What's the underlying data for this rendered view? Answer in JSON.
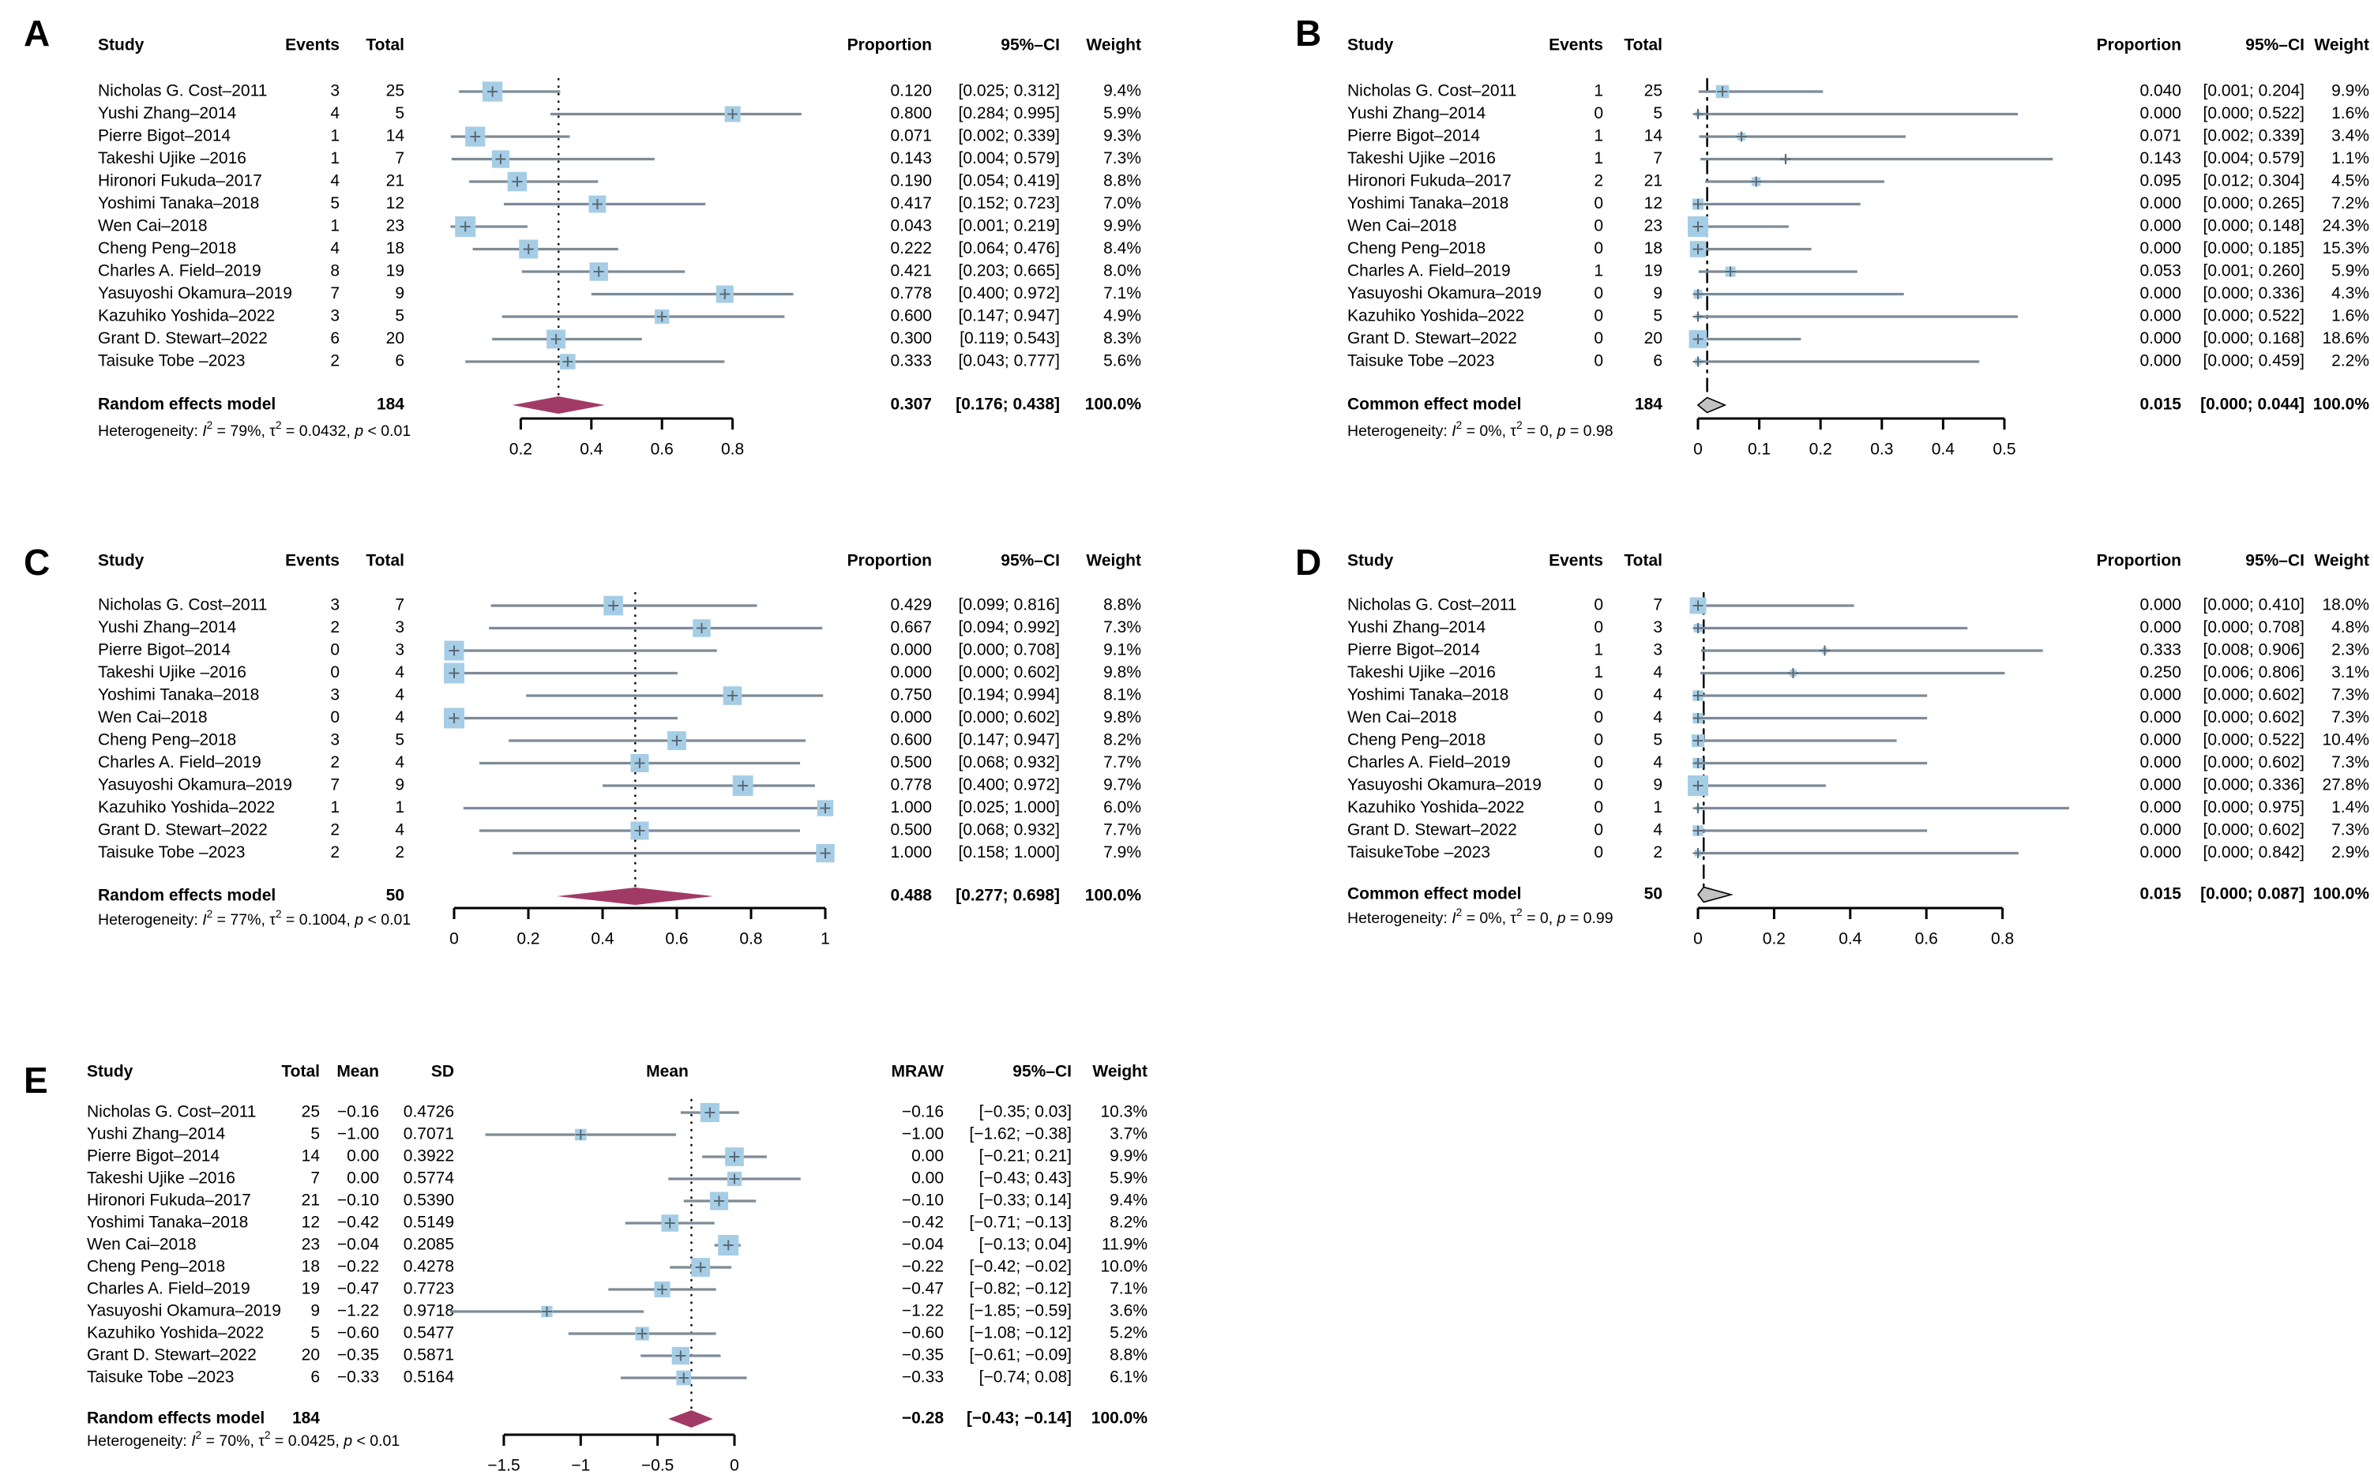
{
  "figure": {
    "background": "#ffffff",
    "colors": {
      "square": "#a5cde5",
      "ci_line": "#7d8b98",
      "marker": "#5a6874",
      "random_diamond": "#a23a66",
      "common_diamond_fill": "#c2c2c2",
      "common_diamond_stroke": "#000000",
      "axis": "#000000"
    },
    "panel_letters": [
      "A",
      "B",
      "C",
      "D",
      "E"
    ]
  },
  "chart_data": [
    {
      "id": "A",
      "letter": "A",
      "type": "forest",
      "model_type": "random",
      "decimals": 3,
      "headers": {
        "study": "Study",
        "events": "Events",
        "total": "Total",
        "effect": "Proportion",
        "ci": "95%–CI",
        "weight": "Weight"
      },
      "axis": {
        "ticks": [
          0.2,
          0.4,
          0.6,
          0.8
        ],
        "tick_labels": [
          "0.2",
          "0.4",
          "0.6",
          "0.8"
        ],
        "line": [
          0.2,
          0.8
        ],
        "ref": 0.307,
        "ref_style": "dotted"
      },
      "studies": [
        {
          "study": "Nicholas G. Cost–2011",
          "events": 3,
          "total": 25,
          "est": 0.12,
          "lo": 0.025,
          "hi": 0.312,
          "weight": 9.4
        },
        {
          "study": "Yushi Zhang–2014",
          "events": 4,
          "total": 5,
          "est": 0.8,
          "lo": 0.284,
          "hi": 0.995,
          "weight": 5.9
        },
        {
          "study": "Pierre Bigot–2014",
          "events": 1,
          "total": 14,
          "est": 0.071,
          "lo": 0.002,
          "hi": 0.339,
          "weight": 9.3
        },
        {
          "study": "Takeshi Ujike –2016",
          "events": 1,
          "total": 7,
          "est": 0.143,
          "lo": 0.004,
          "hi": 0.579,
          "weight": 7.3
        },
        {
          "study": "Hironori Fukuda–2017",
          "events": 4,
          "total": 21,
          "est": 0.19,
          "lo": 0.054,
          "hi": 0.419,
          "weight": 8.8
        },
        {
          "study": "Yoshimi Tanaka–2018",
          "events": 5,
          "total": 12,
          "est": 0.417,
          "lo": 0.152,
          "hi": 0.723,
          "weight": 7.0
        },
        {
          "study": "Wen Cai–2018",
          "events": 1,
          "total": 23,
          "est": 0.043,
          "lo": 0.001,
          "hi": 0.219,
          "weight": 9.9
        },
        {
          "study": "Cheng Peng–2018",
          "events": 4,
          "total": 18,
          "est": 0.222,
          "lo": 0.064,
          "hi": 0.476,
          "weight": 8.4
        },
        {
          "study": "Charles A. Field–2019",
          "events": 8,
          "total": 19,
          "est": 0.421,
          "lo": 0.203,
          "hi": 0.665,
          "weight": 8.0
        },
        {
          "study": "Yasuyoshi Okamura–2019",
          "events": 7,
          "total": 9,
          "est": 0.778,
          "lo": 0.4,
          "hi": 0.972,
          "weight": 7.1
        },
        {
          "study": "Kazuhiko Yoshida–2022",
          "events": 3,
          "total": 5,
          "est": 0.6,
          "lo": 0.147,
          "hi": 0.947,
          "weight": 4.9
        },
        {
          "study": "Grant D. Stewart–2022",
          "events": 6,
          "total": 20,
          "est": 0.3,
          "lo": 0.119,
          "hi": 0.543,
          "weight": 8.3
        },
        {
          "study": "Taisuke Tobe –2023",
          "events": 2,
          "total": 6,
          "est": 0.333,
          "lo": 0.043,
          "hi": 0.777,
          "weight": 5.6
        }
      ],
      "pooled": {
        "label": "Random effects model",
        "total": 184,
        "est": 0.307,
        "lo": 0.176,
        "hi": 0.438,
        "weight_label": "100.0%"
      },
      "heterogeneity": {
        "i2": "79%",
        "tau2": "0.0432",
        "p": "< 0.01"
      }
    },
    {
      "id": "B",
      "letter": "B",
      "type": "forest",
      "model_type": "common",
      "decimals": 3,
      "headers": {
        "study": "Study",
        "events": "Events",
        "total": "Total",
        "effect": "Proportion",
        "ci": "95%–CI",
        "weight": "Weight"
      },
      "axis": {
        "ticks": [
          0,
          0.1,
          0.2,
          0.3,
          0.4,
          0.5
        ],
        "tick_labels": [
          "0",
          "0.1",
          "0.2",
          "0.3",
          "0.4",
          "0.5"
        ],
        "line": [
          0,
          0.5
        ],
        "ref": 0.015,
        "ref_style": "dashdot"
      },
      "studies": [
        {
          "study": "Nicholas G. Cost–2011",
          "events": 1,
          "total": 25,
          "est": 0.04,
          "lo": 0.001,
          "hi": 0.204,
          "weight": 9.9
        },
        {
          "study": "Yushi Zhang–2014",
          "events": 0,
          "total": 5,
          "est": 0.0,
          "lo": 0.0,
          "hi": 0.522,
          "weight": 1.6
        },
        {
          "study": "Pierre Bigot–2014",
          "events": 1,
          "total": 14,
          "est": 0.071,
          "lo": 0.002,
          "hi": 0.339,
          "weight": 3.4
        },
        {
          "study": "Takeshi Ujike –2016",
          "events": 1,
          "total": 7,
          "est": 0.143,
          "lo": 0.004,
          "hi": 0.579,
          "weight": 1.1
        },
        {
          "study": "Hironori Fukuda–2017",
          "events": 2,
          "total": 21,
          "est": 0.095,
          "lo": 0.012,
          "hi": 0.304,
          "weight": 4.5
        },
        {
          "study": "Yoshimi Tanaka–2018",
          "events": 0,
          "total": 12,
          "est": 0.0,
          "lo": 0.0,
          "hi": 0.265,
          "weight": 7.2
        },
        {
          "study": "Wen Cai–2018",
          "events": 0,
          "total": 23,
          "est": 0.0,
          "lo": 0.0,
          "hi": 0.148,
          "weight": 24.3
        },
        {
          "study": "Cheng Peng–2018",
          "events": 0,
          "total": 18,
          "est": 0.0,
          "lo": 0.0,
          "hi": 0.185,
          "weight": 15.3
        },
        {
          "study": "Charles A. Field–2019",
          "events": 1,
          "total": 19,
          "est": 0.053,
          "lo": 0.001,
          "hi": 0.26,
          "weight": 5.9
        },
        {
          "study": "Yasuyoshi Okamura–2019",
          "events": 0,
          "total": 9,
          "est": 0.0,
          "lo": 0.0,
          "hi": 0.336,
          "weight": 4.3
        },
        {
          "study": "Kazuhiko Yoshida–2022",
          "events": 0,
          "total": 5,
          "est": 0.0,
          "lo": 0.0,
          "hi": 0.522,
          "weight": 1.6
        },
        {
          "study": "Grant D. Stewart–2022",
          "events": 0,
          "total": 20,
          "est": 0.0,
          "lo": 0.0,
          "hi": 0.168,
          "weight": 18.6
        },
        {
          "study": "Taisuke Tobe –2023",
          "events": 0,
          "total": 6,
          "est": 0.0,
          "lo": 0.0,
          "hi": 0.459,
          "weight": 2.2
        }
      ],
      "pooled": {
        "label": "Common effect model",
        "total": 184,
        "est": 0.015,
        "lo": 0.0,
        "hi": 0.044,
        "weight_label": "100.0%"
      },
      "heterogeneity": {
        "i2": "0%",
        "tau2": "0",
        "p": "= 0.98"
      }
    },
    {
      "id": "C",
      "letter": "C",
      "type": "forest",
      "model_type": "random",
      "decimals": 3,
      "headers": {
        "study": "Study",
        "events": "Events",
        "total": "Total",
        "effect": "Proportion",
        "ci": "95%–CI",
        "weight": "Weight"
      },
      "axis": {
        "ticks": [
          0,
          0.2,
          0.4,
          0.6,
          0.8,
          1
        ],
        "tick_labels": [
          "0",
          "0.2",
          "0.4",
          "0.6",
          "0.8",
          "1"
        ],
        "line": [
          0,
          1
        ],
        "ref": 0.488,
        "ref_style": "dotted"
      },
      "studies": [
        {
          "study": "Nicholas G. Cost–2011",
          "events": 3,
          "total": 7,
          "est": 0.429,
          "lo": 0.099,
          "hi": 0.816,
          "weight": 8.8
        },
        {
          "study": "Yushi Zhang–2014",
          "events": 2,
          "total": 3,
          "est": 0.667,
          "lo": 0.094,
          "hi": 0.992,
          "weight": 7.3
        },
        {
          "study": "Pierre Bigot–2014",
          "events": 0,
          "total": 3,
          "est": 0.0,
          "lo": 0.0,
          "hi": 0.708,
          "weight": 9.1
        },
        {
          "study": "Takeshi Ujike –2016",
          "events": 0,
          "total": 4,
          "est": 0.0,
          "lo": 0.0,
          "hi": 0.602,
          "weight": 9.8
        },
        {
          "study": "Yoshimi Tanaka–2018",
          "events": 3,
          "total": 4,
          "est": 0.75,
          "lo": 0.194,
          "hi": 0.994,
          "weight": 8.1
        },
        {
          "study": "Wen Cai–2018",
          "events": 0,
          "total": 4,
          "est": 0.0,
          "lo": 0.0,
          "hi": 0.602,
          "weight": 9.8
        },
        {
          "study": "Cheng Peng–2018",
          "events": 3,
          "total": 5,
          "est": 0.6,
          "lo": 0.147,
          "hi": 0.947,
          "weight": 8.2
        },
        {
          "study": "Charles A. Field–2019",
          "events": 2,
          "total": 4,
          "est": 0.5,
          "lo": 0.068,
          "hi": 0.932,
          "weight": 7.7
        },
        {
          "study": "Yasuyoshi Okamura–2019",
          "events": 7,
          "total": 9,
          "est": 0.778,
          "lo": 0.4,
          "hi": 0.972,
          "weight": 9.7
        },
        {
          "study": "Kazuhiko Yoshida–2022",
          "events": 1,
          "total": 1,
          "est": 1.0,
          "lo": 0.025,
          "hi": 1.0,
          "weight": 6.0
        },
        {
          "study": "Grant D. Stewart–2022",
          "events": 2,
          "total": 4,
          "est": 0.5,
          "lo": 0.068,
          "hi": 0.932,
          "weight": 7.7
        },
        {
          "study": "Taisuke Tobe –2023",
          "events": 2,
          "total": 2,
          "est": 1.0,
          "lo": 0.158,
          "hi": 1.0,
          "weight": 7.9
        }
      ],
      "pooled": {
        "label": "Random effects model",
        "total": 50,
        "est": 0.488,
        "lo": 0.277,
        "hi": 0.698,
        "weight_label": "100.0%"
      },
      "heterogeneity": {
        "i2": "77%",
        "tau2": "0.1004",
        "p": "< 0.01"
      }
    },
    {
      "id": "D",
      "letter": "D",
      "type": "forest",
      "model_type": "common",
      "decimals": 3,
      "headers": {
        "study": "Study",
        "events": "Events",
        "total": "Total",
        "effect": "Proportion",
        "ci": "95%–CI",
        "weight": "Weight"
      },
      "axis": {
        "ticks": [
          0,
          0.2,
          0.4,
          0.6,
          0.8
        ],
        "tick_labels": [
          "0",
          "0.2",
          "0.4",
          "0.6",
          "0.8"
        ],
        "line": [
          0,
          0.8
        ],
        "ref": 0.015,
        "ref_style": "dashdot"
      },
      "studies": [
        {
          "study": "Nicholas G. Cost–2011",
          "events": 0,
          "total": 7,
          "est": 0.0,
          "lo": 0.0,
          "hi": 0.41,
          "weight": 18.0
        },
        {
          "study": "Yushi Zhang–2014",
          "events": 0,
          "total": 3,
          "est": 0.0,
          "lo": 0.0,
          "hi": 0.708,
          "weight": 4.8
        },
        {
          "study": "Pierre Bigot–2014",
          "events": 1,
          "total": 3,
          "est": 0.333,
          "lo": 0.008,
          "hi": 0.906,
          "weight": 2.3
        },
        {
          "study": "Takeshi Ujike –2016",
          "events": 1,
          "total": 4,
          "est": 0.25,
          "lo": 0.006,
          "hi": 0.806,
          "weight": 3.1
        },
        {
          "study": "Yoshimi Tanaka–2018",
          "events": 0,
          "total": 4,
          "est": 0.0,
          "lo": 0.0,
          "hi": 0.602,
          "weight": 7.3
        },
        {
          "study": "Wen Cai–2018",
          "events": 0,
          "total": 4,
          "est": 0.0,
          "lo": 0.0,
          "hi": 0.602,
          "weight": 7.3
        },
        {
          "study": "Cheng Peng–2018",
          "events": 0,
          "total": 5,
          "est": 0.0,
          "lo": 0.0,
          "hi": 0.522,
          "weight": 10.4
        },
        {
          "study": "Charles A. Field–2019",
          "events": 0,
          "total": 4,
          "est": 0.0,
          "lo": 0.0,
          "hi": 0.602,
          "weight": 7.3
        },
        {
          "study": "Yasuyoshi Okamura–2019",
          "events": 0,
          "total": 9,
          "est": 0.0,
          "lo": 0.0,
          "hi": 0.336,
          "weight": 27.8
        },
        {
          "study": "Kazuhiko Yoshida–2022",
          "events": 0,
          "total": 1,
          "est": 0.0,
          "lo": 0.0,
          "hi": 0.975,
          "weight": 1.4
        },
        {
          "study": "Grant D. Stewart–2022",
          "events": 0,
          "total": 4,
          "est": 0.0,
          "lo": 0.0,
          "hi": 0.602,
          "weight": 7.3
        },
        {
          "study": "TaisukeTobe –2023",
          "events": 0,
          "total": 2,
          "est": 0.0,
          "lo": 0.0,
          "hi": 0.842,
          "weight": 2.9
        }
      ],
      "pooled": {
        "label": "Common effect model",
        "total": 50,
        "est": 0.015,
        "lo": 0.0,
        "hi": 0.087,
        "weight_label": "100.0%"
      },
      "heterogeneity": {
        "i2": "0%",
        "tau2": "0",
        "p": "= 0.99"
      }
    },
    {
      "id": "E",
      "letter": "E",
      "type": "forest",
      "model_type": "random",
      "effect": "mean",
      "decimals": 2,
      "headers": {
        "study": "Study",
        "total": "Total",
        "mean": "Mean",
        "sd": "SD",
        "plot": "Mean",
        "effect": "MRAW",
        "ci": "95%–CI",
        "weight": "Weight"
      },
      "axis": {
        "ticks": [
          -1.5,
          -1,
          -0.5,
          0
        ],
        "tick_labels": [
          "−1.5",
          "−1",
          "−0.5",
          "0"
        ],
        "line": [
          -1.5,
          0
        ],
        "ref": -0.28,
        "ref_style": "dotted"
      },
      "studies": [
        {
          "study": "Nicholas G. Cost–2011",
          "total": 25,
          "mean": -0.16,
          "sd": "0.4726",
          "est": -0.16,
          "lo": -0.35,
          "hi": 0.03,
          "weight": 10.3
        },
        {
          "study": "Yushi Zhang–2014",
          "total": 5,
          "mean": -1.0,
          "sd": "0.7071",
          "est": -1.0,
          "lo": -1.62,
          "hi": -0.38,
          "weight": 3.7
        },
        {
          "study": "Pierre Bigot–2014",
          "total": 14,
          "mean": 0.0,
          "sd": "0.3922",
          "est": 0.0,
          "lo": -0.21,
          "hi": 0.21,
          "weight": 9.9
        },
        {
          "study": "Takeshi Ujike –2016",
          "total": 7,
          "mean": 0.0,
          "sd": "0.5774",
          "est": 0.0,
          "lo": -0.43,
          "hi": 0.43,
          "weight": 5.9
        },
        {
          "study": "Hironori Fukuda–2017",
          "total": 21,
          "mean": -0.1,
          "sd": "0.5390",
          "est": -0.1,
          "lo": -0.33,
          "hi": 0.14,
          "weight": 9.4
        },
        {
          "study": "Yoshimi Tanaka–2018",
          "total": 12,
          "mean": -0.42,
          "sd": "0.5149",
          "est": -0.42,
          "lo": -0.71,
          "hi": -0.13,
          "weight": 8.2
        },
        {
          "study": "Wen Cai–2018",
          "total": 23,
          "mean": -0.04,
          "sd": "0.2085",
          "est": -0.04,
          "lo": -0.13,
          "hi": 0.04,
          "weight": 11.9
        },
        {
          "study": "Cheng Peng–2018",
          "total": 18,
          "mean": -0.22,
          "sd": "0.4278",
          "est": -0.22,
          "lo": -0.42,
          "hi": -0.02,
          "weight": 10.0
        },
        {
          "study": "Charles A. Field–2019",
          "total": 19,
          "mean": -0.47,
          "sd": "0.7723",
          "est": -0.47,
          "lo": -0.82,
          "hi": -0.12,
          "weight": 7.1
        },
        {
          "study": "Yasuyoshi Okamura–2019",
          "total": 9,
          "mean": -1.22,
          "sd": "0.9718",
          "est": -1.22,
          "lo": -1.85,
          "hi": -0.59,
          "weight": 3.6
        },
        {
          "study": "Kazuhiko Yoshida–2022",
          "total": 5,
          "mean": -0.6,
          "sd": "0.5477",
          "est": -0.6,
          "lo": -1.08,
          "hi": -0.12,
          "weight": 5.2
        },
        {
          "study": "Grant D. Stewart–2022",
          "total": 20,
          "mean": -0.35,
          "sd": "0.5871",
          "est": -0.35,
          "lo": -0.61,
          "hi": -0.09,
          "weight": 8.8
        },
        {
          "study": "Taisuke Tobe –2023",
          "total": 6,
          "mean": -0.33,
          "sd": "0.5164",
          "est": -0.33,
          "lo": -0.74,
          "hi": 0.08,
          "weight": 6.1
        }
      ],
      "pooled": {
        "label": "Random effects model",
        "total": 184,
        "est": -0.28,
        "lo": -0.43,
        "hi": -0.14,
        "weight_label": "100.0%"
      },
      "heterogeneity": {
        "i2": "70%",
        "tau2": "0.0425",
        "p": "< 0.01"
      }
    }
  ]
}
